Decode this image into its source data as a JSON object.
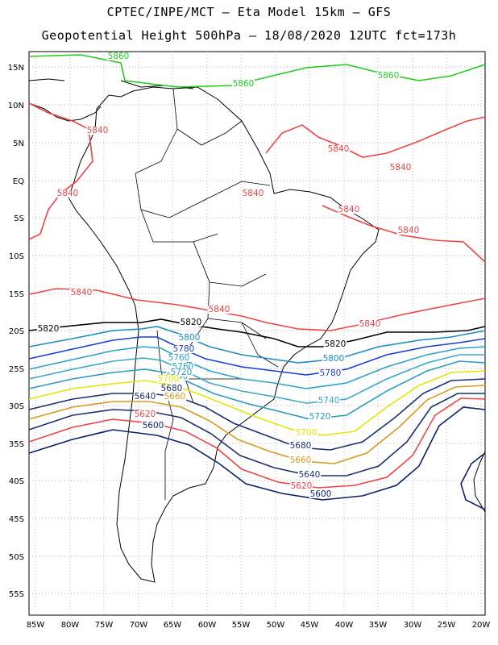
{
  "header": {
    "line1": "CPTEC/INPE/MCT –  Eta Model 15km – GFS",
    "line2": "Geopotential Height 500hPa – 18/08/2020 12UTC fct=173h"
  },
  "map": {
    "lat_labels": [
      "15N",
      "10N",
      "5N",
      "EQ",
      "5S",
      "10S",
      "15S",
      "20S",
      "25S",
      "30S",
      "35S",
      "40S",
      "45S",
      "50S",
      "55S"
    ],
    "lon_labels": [
      "85W",
      "80W",
      "75W",
      "70W",
      "65W",
      "60W",
      "55W",
      "50W",
      "45W",
      "40W",
      "35W",
      "30W",
      "25W",
      "20W"
    ],
    "contour_labels": [
      {
        "text": "5860",
        "color": "#22cc22"
      },
      {
        "text": "5860",
        "color": "#22cc22"
      },
      {
        "text": "5860",
        "color": "#22cc22"
      },
      {
        "text": "5840",
        "color": "#ee4444"
      },
      {
        "text": "5840",
        "color": "#ee4444"
      },
      {
        "text": "5840",
        "color": "#ee4444"
      },
      {
        "text": "5840",
        "color": "#ee4444"
      },
      {
        "text": "5840",
        "color": "#ee4444"
      },
      {
        "text": "5840",
        "color": "#ee4444"
      },
      {
        "text": "5840",
        "color": "#ee4444"
      },
      {
        "text": "5840",
        "color": "#ee4444"
      },
      {
        "text": "5840",
        "color": "#ee4444"
      },
      {
        "text": "5840",
        "color": "#ee4444"
      },
      {
        "text": "5820",
        "color": "#000000"
      },
      {
        "text": "5820",
        "color": "#000000"
      },
      {
        "text": "5820",
        "color": "#000000"
      },
      {
        "text": "5800",
        "color": "#1b8cc4"
      },
      {
        "text": "5800",
        "color": "#1b8cc4"
      },
      {
        "text": "5780",
        "color": "#1a3dd6"
      },
      {
        "text": "5780",
        "color": "#1a3dd6"
      },
      {
        "text": "5760",
        "color": "#2aa0d0"
      },
      {
        "text": "5760",
        "color": "#2aa0d0"
      },
      {
        "text": "5740",
        "color": "#3aa8c8"
      },
      {
        "text": "5740",
        "color": "#3aa8c8"
      },
      {
        "text": "5720",
        "color": "#2a9bc0"
      },
      {
        "text": "5720",
        "color": "#2a9bc0"
      },
      {
        "text": "5700",
        "color": "#e6e600"
      },
      {
        "text": "5700",
        "color": "#e6e600"
      },
      {
        "text": "5680",
        "color": "#1a3070"
      },
      {
        "text": "5680",
        "color": "#1a3070"
      },
      {
        "text": "5660",
        "color": "#d89a20"
      },
      {
        "text": "5660",
        "color": "#d89a20"
      },
      {
        "text": "5640",
        "color": "#1a3070"
      },
      {
        "text": "5640",
        "color": "#1a3070"
      },
      {
        "text": "5620",
        "color": "#ee4444"
      },
      {
        "text": "5620",
        "color": "#ee4444"
      },
      {
        "text": "5600",
        "color": "#0a1f6e"
      },
      {
        "text": "5600",
        "color": "#0a1f6e"
      }
    ]
  }
}
